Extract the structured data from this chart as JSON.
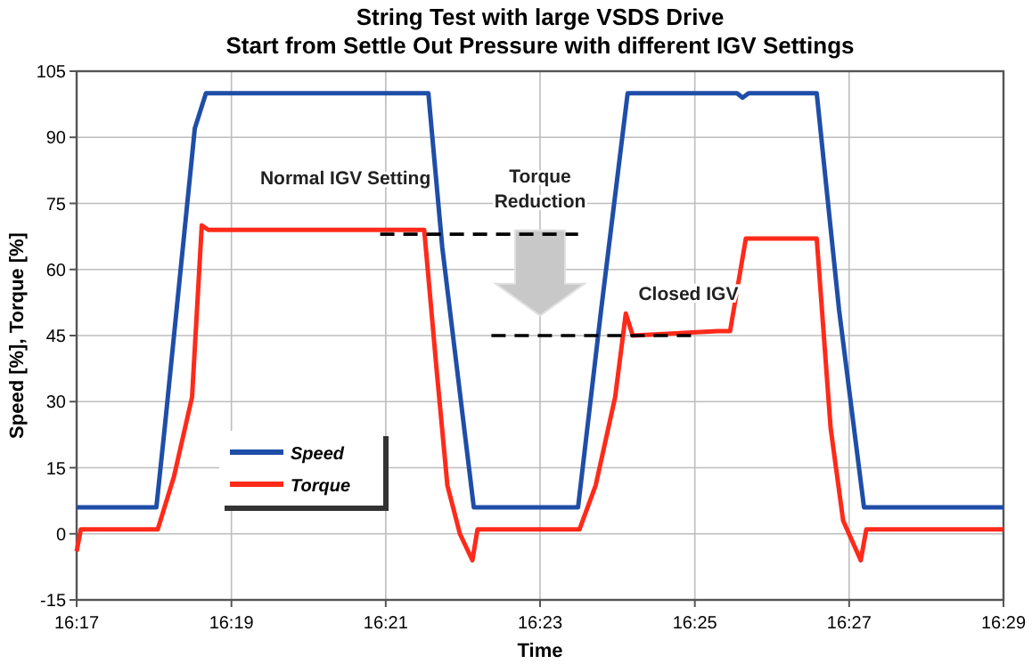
{
  "chart_data": {
    "type": "line",
    "title": "String Test with large VSDS Drive",
    "subtitle": "Start from Settle Out Pressure with different IGV Settings",
    "xlabel": "Time",
    "ylabel": "Speed [%], Torque [%]",
    "xlim": [
      16.2833,
      16.4833
    ],
    "xticks": [
      {
        "value": 16.2833,
        "label": "16:17"
      },
      {
        "value": 16.3167,
        "label": "16:19"
      },
      {
        "value": 16.35,
        "label": "16:21"
      },
      {
        "value": 16.3833,
        "label": "16:23"
      },
      {
        "value": 16.4167,
        "label": "16:25"
      },
      {
        "value": 16.45,
        "label": "16:27"
      },
      {
        "value": 16.4833,
        "label": "16:29"
      }
    ],
    "ylim": [
      -15,
      105
    ],
    "yticks": [
      -15,
      0,
      15,
      30,
      45,
      60,
      75,
      90,
      105
    ],
    "grid": true,
    "legend": "bottom left",
    "line_style": "solid",
    "series": [
      {
        "name": "Speed",
        "color": "#1f4ea8",
        "x": [
          16.2833,
          16.3005,
          16.3023,
          16.3088,
          16.3112,
          16.3592,
          16.3622,
          16.369,
          16.3915,
          16.3965,
          16.4022,
          16.4258,
          16.427,
          16.4283,
          16.443,
          16.4478,
          16.4532,
          16.4833
        ],
        "values": [
          6,
          6,
          24,
          92,
          100,
          100,
          65,
          6,
          6,
          51,
          100,
          100,
          99,
          100,
          100,
          51,
          6,
          6
        ]
      },
      {
        "name": "Torque",
        "color": "#ff2a1a",
        "x": [
          16.2833,
          16.2842,
          16.3008,
          16.3043,
          16.3082,
          16.3103,
          16.3117,
          16.3583,
          16.361,
          16.3633,
          16.366,
          16.3687,
          16.3698,
          16.3918,
          16.3953,
          16.3995,
          16.4018,
          16.4033,
          16.4217,
          16.4243,
          16.4277,
          16.443,
          16.446,
          16.4487,
          16.4525,
          16.4537,
          16.4833
        ],
        "values": [
          -4,
          1,
          1,
          13,
          31,
          70,
          69,
          69,
          37,
          11,
          0,
          -6,
          1,
          1,
          11,
          31,
          50,
          45,
          46,
          46,
          67,
          67,
          24,
          3,
          -6,
          1,
          1
        ]
      },
      {
        "type": "line",
        "color": "#000000",
        "line_style": "dashed",
        "x": [
          16.3488,
          16.3915
        ],
        "values": [
          68,
          68
        ]
      },
      {
        "type": "line",
        "color": "#000000",
        "line_style": "dashed",
        "x": [
          16.3728,
          16.4163
        ],
        "values": [
          45,
          45
        ]
      }
    ],
    "annotations": [
      "Normal IGV Setting",
      "Torque\nReduction",
      "Closed IGV"
    ]
  }
}
